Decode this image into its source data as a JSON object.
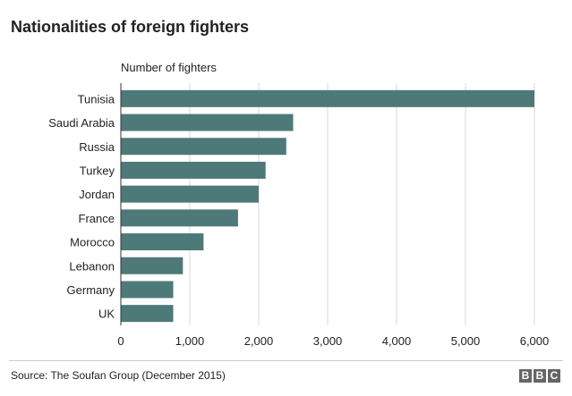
{
  "chart_data": {
    "type": "bar",
    "orientation": "horizontal",
    "title": "Nationalities of foreign fighters",
    "xlabel": "Number of fighters",
    "ylabel": "",
    "categories": [
      "Tunisia",
      "Saudi Arabia",
      "Russia",
      "Turkey",
      "Jordan",
      "France",
      "Morocco",
      "Lebanon",
      "Germany",
      "UK"
    ],
    "values": [
      6000,
      2500,
      2400,
      2100,
      2000,
      1700,
      1200,
      900,
      760,
      760
    ],
    "xlim": [
      0,
      6000
    ],
    "ticks": [
      "0",
      "1,000",
      "2,000",
      "3,000",
      "4,000",
      "5,000",
      "6,000"
    ],
    "grid": "vertical",
    "bar_color": "#4d7a78"
  },
  "footer": {
    "source": "Source: The Soufan Group (December 2015)",
    "logo_letters": [
      "B",
      "B",
      "C"
    ]
  }
}
